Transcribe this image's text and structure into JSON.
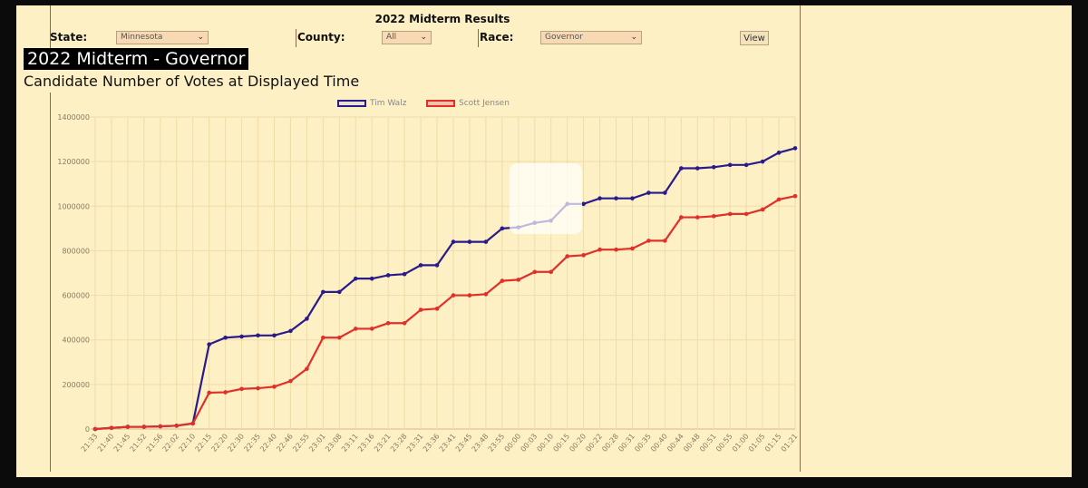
{
  "header": {
    "title": "2022 Midterm Results",
    "state_label": "State:",
    "state_value": "Minnesota",
    "county_label": "County:",
    "county_value": "All",
    "race_label": "Race:",
    "race_value": "Governor",
    "view_button": "View"
  },
  "page_title": "2022 Midterm - Governor",
  "subtitle": "Candidate Number of Votes at Displayed Time",
  "colors": {
    "walz": "#2a1a8a",
    "jensen": "#e0302a"
  },
  "chart_data": {
    "type": "line",
    "title": "Candidate Number of Votes at Displayed Time",
    "xlabel": "",
    "ylabel": "",
    "ylim": [
      0,
      1400000
    ],
    "yticks": [
      0,
      200000,
      400000,
      600000,
      800000,
      1000000,
      1200000,
      1400000
    ],
    "grid": true,
    "legend_placement": "top-center",
    "categories": [
      "21:33",
      "21:40",
      "21:45",
      "21:52",
      "21:56",
      "22:02",
      "22:10",
      "22:15",
      "22:20",
      "22:30",
      "22:35",
      "22:40",
      "22:46",
      "22:55",
      "23:01",
      "23:08",
      "23:11",
      "23:16",
      "23:21",
      "23:28",
      "23:31",
      "23:36",
      "23:41",
      "23:45",
      "23:48",
      "23:55",
      "00:00",
      "00:03",
      "00:10",
      "00:15",
      "00:20",
      "00:22",
      "00:28",
      "00:31",
      "00:35",
      "00:40",
      "00:44",
      "00:48",
      "00:51",
      "00:55",
      "01:00",
      "01:05",
      "01:15",
      "01:21"
    ],
    "series": [
      {
        "name": "Tim Walz",
        "values": [
          0,
          5000,
          10000,
          10000,
          12000,
          15000,
          25000,
          380000,
          410000,
          415000,
          420000,
          420000,
          440000,
          495000,
          615000,
          615000,
          675000,
          675000,
          690000,
          695000,
          735000,
          735000,
          840000,
          840000,
          840000,
          900000,
          905000,
          925000,
          935000,
          1010000,
          1010000,
          1035000,
          1035000,
          1035000,
          1060000,
          1060000,
          1170000,
          1170000,
          1175000,
          1185000,
          1185000,
          1200000,
          1240000,
          1260000
        ]
      },
      {
        "name": "Scott Jensen",
        "values": [
          0,
          5000,
          10000,
          10000,
          12000,
          15000,
          25000,
          163000,
          165000,
          180000,
          183000,
          190000,
          215000,
          270000,
          410000,
          410000,
          450000,
          450000,
          475000,
          475000,
          535000,
          540000,
          600000,
          600000,
          605000,
          665000,
          670000,
          705000,
          705000,
          775000,
          780000,
          805000,
          805000,
          810000,
          845000,
          845000,
          950000,
          950000,
          955000,
          965000,
          965000,
          985000,
          1030000,
          1045000
        ]
      }
    ]
  }
}
